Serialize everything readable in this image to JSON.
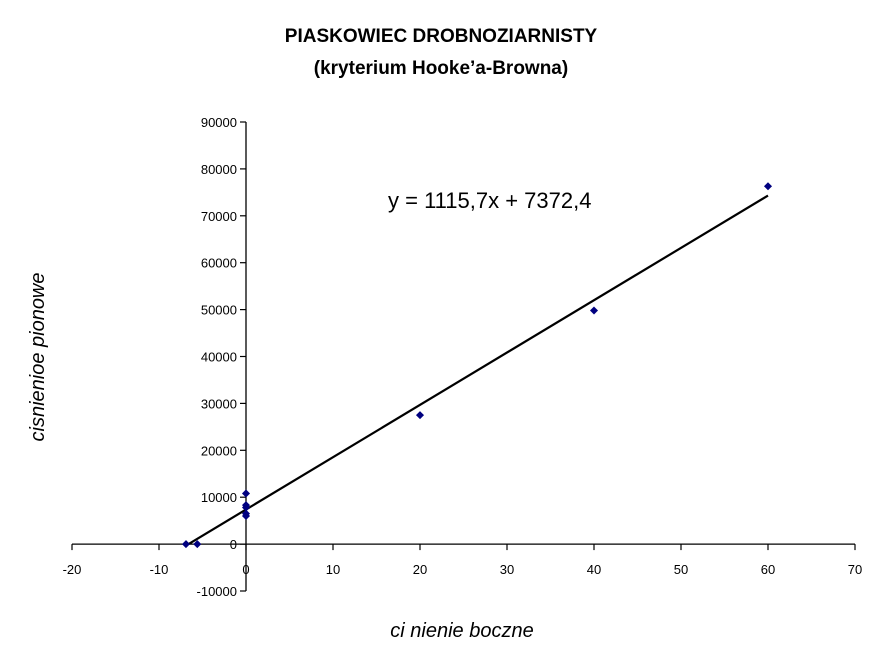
{
  "chart_data": {
    "type": "scatter",
    "title": "PIASKOWIEC DROBNOZIARNISTY",
    "subtitle": "(kryterium Hooke’a-Browna)",
    "xlabel": "ci  nienie boczne",
    "ylabel": "cisnienioe pionowe",
    "xlim": [
      -20,
      70
    ],
    "ylim": [
      -10000,
      90000
    ],
    "x_ticks": [
      -20,
      -10,
      0,
      10,
      20,
      30,
      40,
      50,
      60,
      70
    ],
    "y_ticks": [
      -10000,
      0,
      10000,
      20000,
      30000,
      40000,
      50000,
      60000,
      70000,
      80000,
      90000
    ],
    "x_tick_labels": [
      "-20",
      "-10",
      "0",
      "10",
      "20",
      "30",
      "40",
      "50",
      "60",
      "70"
    ],
    "y_tick_labels": [
      "-10000",
      "0",
      "10000",
      "20000",
      "30000",
      "40000",
      "50000",
      "60000",
      "70000",
      "80000",
      "90000"
    ],
    "grid": false,
    "legend": "none",
    "series": [
      {
        "points": [
          {
            "x": -6.9,
            "y": 0
          },
          {
            "x": -5.6,
            "y": 0
          },
          {
            "x": 0,
            "y": 6000
          },
          {
            "x": 0,
            "y": 6500
          },
          {
            "x": 0,
            "y": 7800
          },
          {
            "x": 0,
            "y": 8300
          },
          {
            "x": 0,
            "y": 10800
          },
          {
            "x": 20,
            "y": 27500
          },
          {
            "x": 40,
            "y": 49800
          },
          {
            "x": 60,
            "y": 76300
          }
        ],
        "marker_color": "#000080"
      }
    ],
    "trendline": {
      "slope": 1115.7,
      "intercept": 7372.4,
      "x_range": [
        -6.6,
        60
      ],
      "equation": "y = 1115,7x + 7372,4",
      "color": "#000000"
    }
  }
}
